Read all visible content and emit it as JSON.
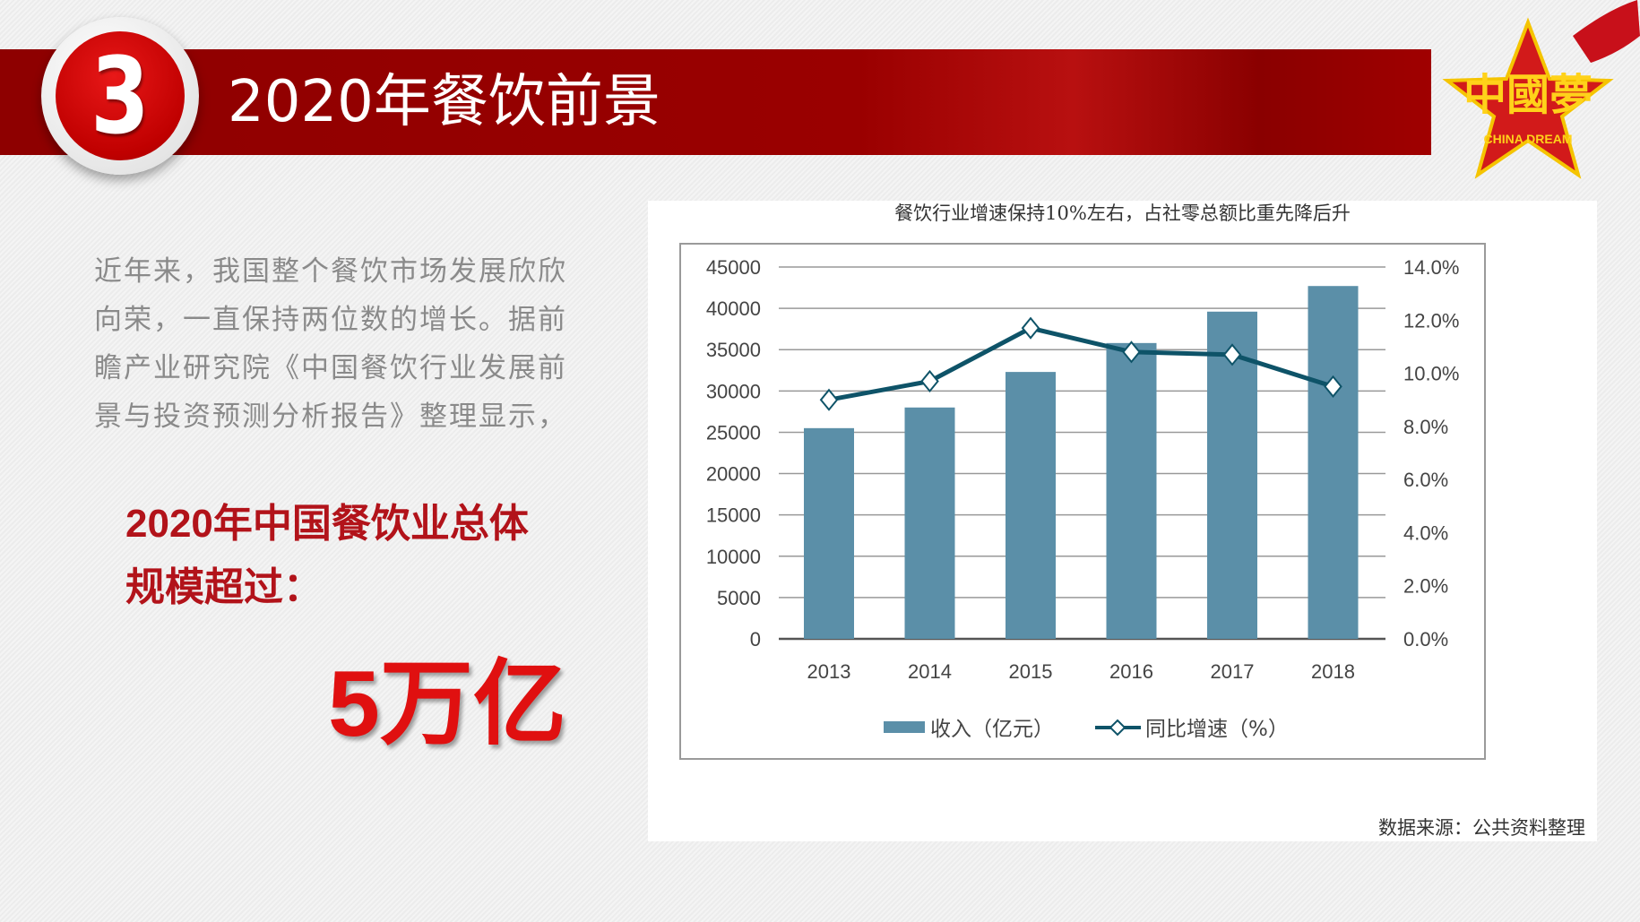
{
  "header": {
    "section_number": "3",
    "title": "2020年餐饮前景"
  },
  "logo": {
    "text_cn": "中國夢",
    "text_en": "CHINA DREAM"
  },
  "intro": {
    "lines": [
      "近年来，我国整个餐饮市场发展欣欣",
      "向荣，一直保持两位数的增长。据前",
      "瞻产业研究院《中国餐饮行业发展前",
      "景与投资预测分析报告》整理显示，"
    ]
  },
  "highlight": {
    "lines": [
      "2020年中国餐饮业总体",
      "规模超过："
    ],
    "value": "5万亿"
  },
  "colors": {
    "accent": "#9a0000",
    "bar": "#5b8fa8",
    "line": "#0e5368",
    "highlight": "#b2131a"
  },
  "chart_data": {
    "type": "bar+line",
    "title": "餐饮行业增速保持10%左右，占社零总额比重先降后升",
    "categories": [
      "2013",
      "2014",
      "2015",
      "2016",
      "2017",
      "2018"
    ],
    "series": [
      {
        "name": "收入（亿元）",
        "type": "bar",
        "axis": "left",
        "values": [
          25500,
          28000,
          32300,
          35800,
          39600,
          42700
        ]
      },
      {
        "name": "同比增速（%）",
        "type": "line",
        "axis": "right",
        "values": [
          9.0,
          9.7,
          11.7,
          10.8,
          10.7,
          9.5
        ]
      }
    ],
    "left_axis": {
      "ylim": [
        0,
        45000
      ],
      "ticks": [
        "0",
        "5000",
        "10000",
        "15000",
        "20000",
        "25000",
        "30000",
        "35000",
        "40000",
        "45000"
      ]
    },
    "right_axis": {
      "ylim": [
        0,
        14
      ],
      "ticks": [
        "0.0%",
        "2.0%",
        "4.0%",
        "6.0%",
        "8.0%",
        "10.0%",
        "12.0%",
        "14.0%"
      ]
    },
    "grid": true,
    "legend_position": "bottom",
    "source": "数据来源：公共资料整理"
  }
}
